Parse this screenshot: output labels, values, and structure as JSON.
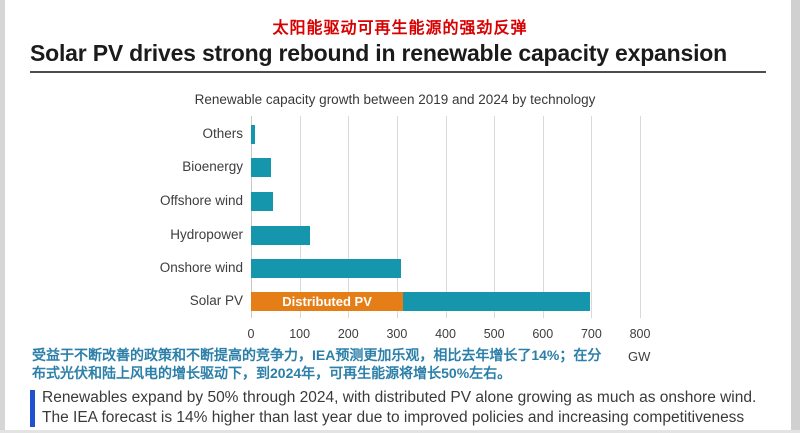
{
  "page": {
    "title_zh": "太阳能驱动可再生能源的强劲反弹",
    "title_en": "Solar PV drives strong rebound in renewable capacity expansion",
    "annotation_zh_line1": "受益于不断改善的政策和不断提高的竞争力，IEA预测更加乐观，相比去年增长了14%；在分",
    "annotation_zh_line2": "布式光伏和陆上风电的增长驱动下，到2024年，可再生能源将增长50%左右。",
    "footer_line1": "Renewables expand by 50% through 2024, with distributed PV alone growing as much as onshore wind.",
    "footer_line2": "The IEA forecast is 14% higher than last year due to improved policies and increasing competitiveness"
  },
  "colors": {
    "headline_red": "#d80000",
    "annotation_blue": "#2c7fa9",
    "callout_accent_blue": "#2150d3",
    "bar_teal": "#1596ac",
    "distributed_pv_orange": "#e67e17",
    "gridline_gray": "#d9d9d9"
  },
  "chart_data": {
    "type": "bar",
    "orientation": "horizontal",
    "title": "Renewable capacity growth between 2019 and 2024 by technology",
    "categories": [
      "Others",
      "Bioenergy",
      "Offshore wind",
      "Hydropower",
      "Onshore wind",
      "Solar PV"
    ],
    "values_gw": [
      8,
      42,
      45,
      121,
      309,
      697
    ],
    "solar_pv_segments": {
      "distributed_pv_gw": 313,
      "remaining_solar_pv_gw": 384
    },
    "segment_label": "Distributed PV",
    "xlabel": "GW",
    "xlim": [
      0,
      800
    ],
    "xticks": [
      0,
      100,
      200,
      300,
      400,
      500,
      600,
      700,
      800
    ],
    "grid": true,
    "legend": "none"
  }
}
